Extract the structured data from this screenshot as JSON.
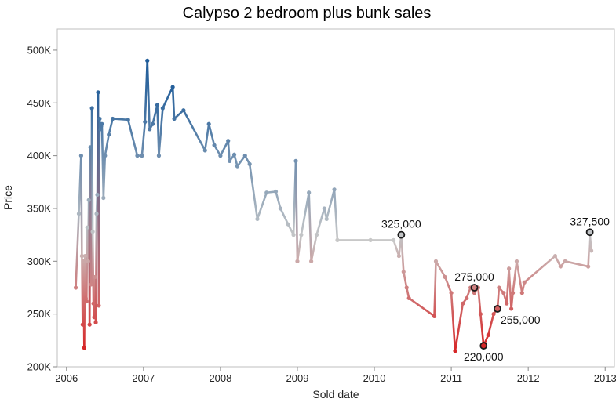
{
  "chart_data": {
    "type": "line",
    "title": "Calypso 2 bedroom plus bunk sales",
    "xlabel": "Sold date",
    "ylabel": "Price",
    "xlim": [
      2005.88,
      2013.12
    ],
    "ylim": [
      200000,
      520000
    ],
    "x_ticks": [
      2006,
      2007,
      2008,
      2009,
      2010,
      2011,
      2012,
      2013
    ],
    "x_tick_labels": [
      "2006",
      "2007",
      "2008",
      "2009",
      "2010",
      "2011",
      "2012",
      "2013"
    ],
    "y_ticks": [
      200000,
      250000,
      300000,
      350000,
      400000,
      450000,
      500000
    ],
    "y_tick_labels": [
      "200K",
      "250K",
      "300K",
      "350K",
      "400K",
      "450K",
      "500K"
    ],
    "grid": false,
    "color_scale": {
      "high": "#1f5c99",
      "mid": "#c8c8c8",
      "low": "#d62728"
    },
    "series": [
      {
        "x": [
          2006.12,
          2006.16,
          2006.19,
          2006.2,
          2006.21,
          2006.22,
          2006.23,
          2006.24,
          2006.25,
          2006.26,
          2006.27,
          2006.28,
          2006.29,
          2006.3,
          2006.31,
          2006.32,
          2006.33,
          2006.34,
          2006.35,
          2006.36,
          2006.37,
          2006.38,
          2006.39,
          2006.4,
          2006.41,
          2006.42,
          2006.43,
          2006.44,
          2006.45,
          2006.46,
          2006.48,
          2006.5,
          2006.55,
          2006.6,
          2006.8,
          2006.92,
          2006.98,
          2007.02,
          2007.05,
          2007.08,
          2007.12,
          2007.18,
          2007.2,
          2007.25,
          2007.38,
          2007.4,
          2007.52,
          2007.8,
          2007.85,
          2007.92,
          2008.0,
          2008.1,
          2008.12,
          2008.18,
          2008.22,
          2008.32,
          2008.38,
          2008.48,
          2008.6,
          2008.72,
          2008.78,
          2008.88,
          2008.95,
          2008.98,
          2009.0,
          2009.05,
          2009.15,
          2009.18,
          2009.25,
          2009.35,
          2009.38,
          2009.48,
          2009.52,
          2009.95,
          2010.25,
          2010.32,
          2010.35,
          2010.38,
          2010.42,
          2010.45,
          2010.78,
          2010.8,
          2010.92,
          2011.0,
          2011.05,
          2011.15,
          2011.2,
          2011.25,
          2011.3,
          2011.35,
          2011.38,
          2011.42,
          2011.48,
          2011.55,
          2011.6,
          2011.62,
          2011.68,
          2011.72,
          2011.75,
          2011.78,
          2011.8,
          2011.85,
          2011.92,
          2011.95,
          2012.35,
          2012.42,
          2012.48,
          2012.78,
          2012.8,
          2012.82
        ],
        "y": [
          275000,
          345000,
          400000,
          305000,
          240000,
          300000,
          218000,
          305000,
          265000,
          262000,
          332000,
          300000,
          358000,
          240000,
          408000,
          278000,
          445000,
          328000,
          260000,
          247000,
          285000,
          242000,
          345000,
          363000,
          460000,
          258000,
          435000,
          425000,
          428000,
          430000,
          360000,
          400000,
          420000,
          435000,
          434000,
          400000,
          400000,
          432000,
          490000,
          425000,
          430000,
          448000,
          400000,
          445000,
          465000,
          435000,
          443000,
          405000,
          430000,
          410000,
          400000,
          414000,
          395000,
          401000,
          390000,
          400000,
          392000,
          340000,
          365000,
          366000,
          350000,
          335000,
          325000,
          395000,
          300000,
          325000,
          365000,
          300000,
          325000,
          350000,
          340000,
          368000,
          320000,
          320000,
          320000,
          305000,
          325000,
          290000,
          275000,
          265000,
          248000,
          300000,
          285000,
          270000,
          215000,
          260000,
          265000,
          275000,
          270000,
          275000,
          250000,
          220000,
          230000,
          250000,
          255000,
          275000,
          270000,
          260000,
          293000,
          255000,
          270000,
          300000,
          270000,
          280000,
          305000,
          295000,
          300000,
          295000,
          327500,
          310000
        ]
      }
    ],
    "annotations": [
      {
        "x": 2010.35,
        "y": 325000,
        "text": "325,000",
        "placement": "above"
      },
      {
        "x": 2011.3,
        "y": 275000,
        "text": "275,000",
        "placement": "above"
      },
      {
        "x": 2011.42,
        "y": 220000,
        "text": "220,000",
        "placement": "below"
      },
      {
        "x": 2011.6,
        "y": 255000,
        "text": "255,000",
        "placement": "below-right"
      },
      {
        "x": 2012.8,
        "y": 327500,
        "text": "327,500",
        "placement": "above"
      }
    ]
  }
}
